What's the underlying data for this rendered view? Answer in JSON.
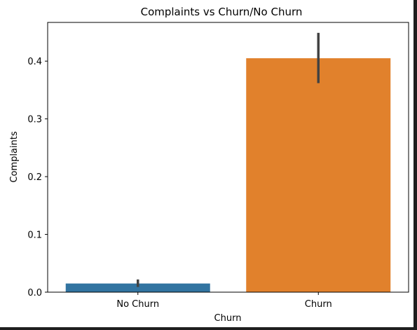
{
  "chart_data": {
    "type": "bar",
    "title": "Complaints vs Churn/No Churn",
    "xlabel": "Churn",
    "ylabel": "Complaints",
    "categories": [
      "No Churn",
      "Churn"
    ],
    "values": [
      0.015,
      0.405
    ],
    "error_bars": [
      {
        "low": 0.009,
        "high": 0.022
      },
      {
        "low": 0.362,
        "high": 0.449
      }
    ],
    "colors": [
      "#3274a1",
      "#e1812c"
    ],
    "ylim": [
      0,
      0.467
    ],
    "yticks": [
      0.0,
      0.1,
      0.2,
      0.3,
      0.4
    ],
    "ytick_labels": [
      "0.0",
      "0.1",
      "0.2",
      "0.3",
      "0.4"
    ],
    "grid": false,
    "legend": "none"
  }
}
